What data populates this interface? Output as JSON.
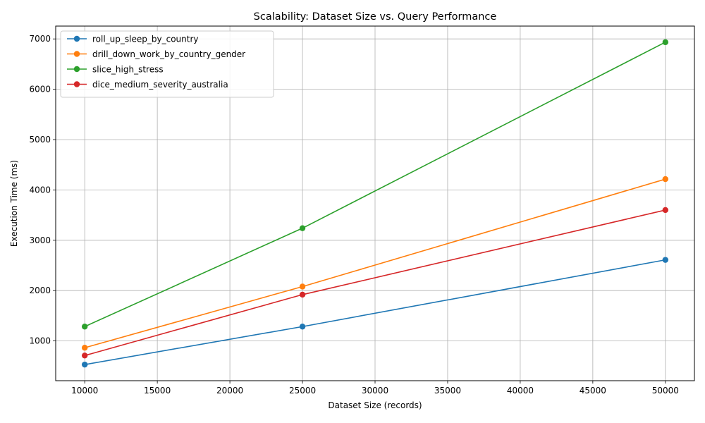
{
  "chart_data": {
    "type": "line",
    "title": "Scalability: Dataset Size vs. Query Performance",
    "xlabel": "Dataset Size (records)",
    "ylabel": "Execution Time (ms)",
    "x": [
      10000,
      25000,
      50000
    ],
    "series": [
      {
        "name": "roll_up_sleep_by_country",
        "values": [
          530,
          1285,
          2610
        ],
        "color": "#1f77b4"
      },
      {
        "name": "drill_down_work_by_country_gender",
        "values": [
          865,
          2080,
          4215
        ],
        "color": "#ff7f0e"
      },
      {
        "name": "slice_high_stress",
        "values": [
          1285,
          3240,
          6935
        ],
        "color": "#2ca02c"
      },
      {
        "name": "dice_medium_severity_australia",
        "values": [
          710,
          1920,
          3600
        ],
        "color": "#d62728"
      }
    ],
    "xlim": [
      8000,
      52000
    ],
    "ylim": [
      210,
      7255
    ],
    "xticks": [
      10000,
      15000,
      20000,
      25000,
      30000,
      35000,
      40000,
      45000,
      50000
    ],
    "yticks": [
      1000,
      2000,
      3000,
      4000,
      5000,
      6000,
      7000
    ],
    "grid": true,
    "legend_position": "upper-left",
    "marker": "circle"
  }
}
